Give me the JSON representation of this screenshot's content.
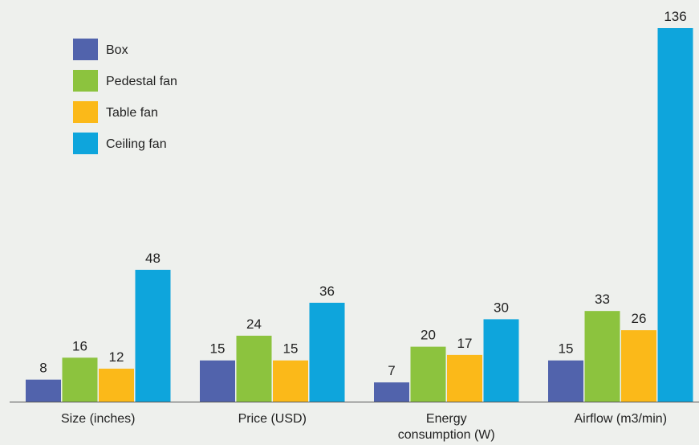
{
  "chart_data": {
    "type": "bar",
    "title": "",
    "xlabel": "",
    "ylabel": "",
    "categories": [
      [
        "Size (inches)"
      ],
      [
        "Price (USD)"
      ],
      [
        "Energy",
        "consumption (W)"
      ],
      [
        "Airflow (m3/min)"
      ]
    ],
    "series": [
      {
        "name": "Box",
        "color": "#5163ac",
        "values": [
          8,
          15,
          7,
          15
        ]
      },
      {
        "name": "Pedestal fan",
        "color": "#8cc33e",
        "values": [
          16,
          24,
          20,
          33
        ]
      },
      {
        "name": "Table fan",
        "color": "#fbb919",
        "values": [
          12,
          15,
          17,
          26
        ]
      },
      {
        "name": "Ceiling fan",
        "color": "#0ea5dc",
        "values": [
          48,
          36,
          30,
          136
        ]
      }
    ],
    "ylim": [
      0,
      136
    ],
    "grid": false,
    "legend_position": "top-left",
    "background": "#eef0ed",
    "axis_color": "#555555"
  }
}
